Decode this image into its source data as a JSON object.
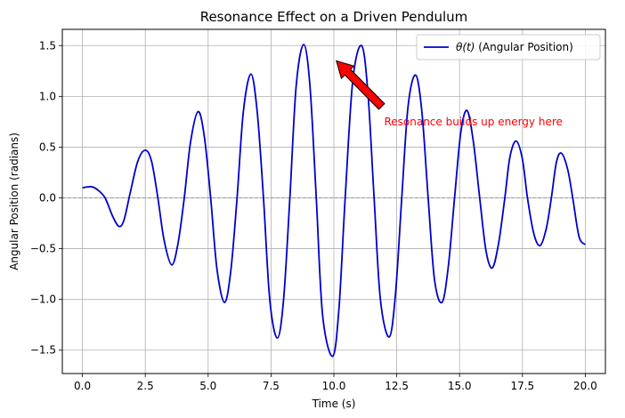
{
  "chart_data": {
    "type": "line",
    "title": "Resonance Effect on a Driven Pendulum",
    "xlabel": "Time (s)",
    "ylabel": "Angular Position (radians)",
    "xlim": [
      -0.8,
      20.8
    ],
    "ylim": [
      -1.73,
      1.66
    ],
    "xticks": [
      0.0,
      2.5,
      5.0,
      7.5,
      10.0,
      12.5,
      15.0,
      17.5,
      20.0
    ],
    "xtick_labels": [
      "0.0",
      "2.5",
      "5.0",
      "7.5",
      "10.0",
      "12.5",
      "15.0",
      "17.5",
      "20.0"
    ],
    "yticks": [
      -1.5,
      -1.0,
      -0.5,
      0.0,
      0.5,
      1.0,
      1.5
    ],
    "ytick_labels": [
      "−1.5",
      "−1.0",
      "−0.5",
      "0.0",
      "0.5",
      "1.0",
      "1.5"
    ],
    "grid": true,
    "zero_line": {
      "y": 0.0,
      "style": "dashed",
      "color": "#999999"
    },
    "legend": {
      "placement": "top-right",
      "entries": [
        {
          "label_prefix": "θ(t)",
          "label_suffix": " (Angular Position)",
          "color": "#0000cc"
        }
      ]
    },
    "series": [
      {
        "name": "θ(t) (Angular Position)",
        "color": "#0000cc",
        "points": [
          [
            0.0,
            0.1
          ],
          [
            0.35,
            0.11
          ],
          [
            0.6,
            0.08
          ],
          [
            0.9,
            0.0
          ],
          [
            1.2,
            -0.18
          ],
          [
            1.45,
            -0.28
          ],
          [
            1.65,
            -0.22
          ],
          [
            1.9,
            0.05
          ],
          [
            2.2,
            0.36
          ],
          [
            2.5,
            0.47
          ],
          [
            2.75,
            0.36
          ],
          [
            3.0,
            0.0
          ],
          [
            3.25,
            -0.42
          ],
          [
            3.55,
            -0.66
          ],
          [
            3.8,
            -0.45
          ],
          [
            4.05,
            0.0
          ],
          [
            4.3,
            0.55
          ],
          [
            4.6,
            0.85
          ],
          [
            4.85,
            0.6
          ],
          [
            5.1,
            0.0
          ],
          [
            5.35,
            -0.7
          ],
          [
            5.65,
            -1.03
          ],
          [
            5.9,
            -0.72
          ],
          [
            6.15,
            0.0
          ],
          [
            6.4,
            0.85
          ],
          [
            6.7,
            1.22
          ],
          [
            6.95,
            0.85
          ],
          [
            7.2,
            0.0
          ],
          [
            7.45,
            -1.0
          ],
          [
            7.75,
            -1.38
          ],
          [
            8.0,
            -1.0
          ],
          [
            8.25,
            0.0
          ],
          [
            8.5,
            1.1
          ],
          [
            8.8,
            1.51
          ],
          [
            9.05,
            1.1
          ],
          [
            9.3,
            0.0
          ],
          [
            9.55,
            -1.15
          ],
          [
            9.95,
            -1.56
          ],
          [
            10.2,
            -1.1
          ],
          [
            10.45,
            0.0
          ],
          [
            10.75,
            1.15
          ],
          [
            11.1,
            1.5
          ],
          [
            11.35,
            1.05
          ],
          [
            11.6,
            0.0
          ],
          [
            11.85,
            -1.0
          ],
          [
            12.2,
            -1.37
          ],
          [
            12.45,
            -0.95
          ],
          [
            12.7,
            0.0
          ],
          [
            12.95,
            0.9
          ],
          [
            13.25,
            1.21
          ],
          [
            13.5,
            0.85
          ],
          [
            13.75,
            0.0
          ],
          [
            14.0,
            -0.8
          ],
          [
            14.3,
            -1.03
          ],
          [
            14.55,
            -0.68
          ],
          [
            14.8,
            0.0
          ],
          [
            15.05,
            0.65
          ],
          [
            15.3,
            0.86
          ],
          [
            15.55,
            0.55
          ],
          [
            15.8,
            0.0
          ],
          [
            16.05,
            -0.52
          ],
          [
            16.3,
            -0.69
          ],
          [
            16.55,
            -0.45
          ],
          [
            16.8,
            0.0
          ],
          [
            17.0,
            0.4
          ],
          [
            17.25,
            0.56
          ],
          [
            17.5,
            0.38
          ],
          [
            17.7,
            0.0
          ],
          [
            17.95,
            -0.35
          ],
          [
            18.2,
            -0.47
          ],
          [
            18.45,
            -0.3
          ],
          [
            18.65,
            0.0
          ],
          [
            18.85,
            0.35
          ],
          [
            19.05,
            0.44
          ],
          [
            19.3,
            0.28
          ],
          [
            19.5,
            0.0
          ],
          [
            19.75,
            -0.38
          ],
          [
            20.0,
            -0.46
          ]
        ]
      }
    ],
    "annotation": {
      "text": "Resonance builds up energy here",
      "text_color": "#ff0000",
      "text_xy": [
        12.0,
        0.75
      ],
      "arrow_from": [
        11.9,
        0.9
      ],
      "arrow_to": [
        10.1,
        1.35
      ],
      "arrow_color": "#ff0000"
    }
  }
}
